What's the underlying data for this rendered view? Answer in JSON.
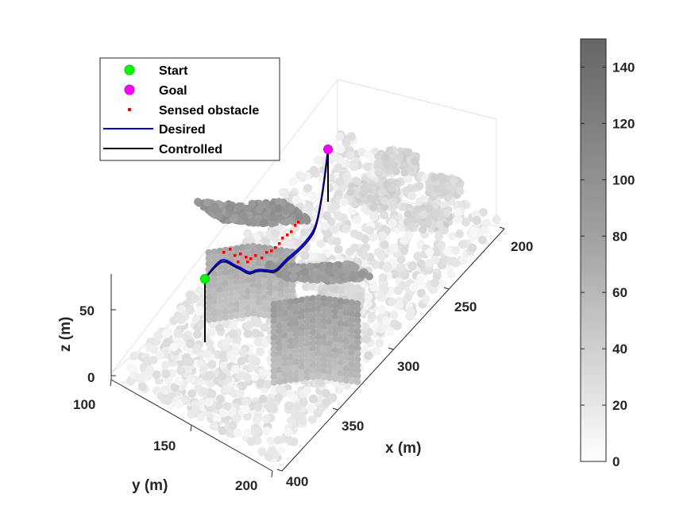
{
  "chart_data": {
    "type": "scatter",
    "title": "",
    "xlabel": "x (m)",
    "ylabel": "y (m)",
    "zlabel": "z (m)",
    "x_ticks": [
      "200",
      "250",
      "300",
      "350",
      "400"
    ],
    "y_ticks": [
      "100",
      "150",
      "200"
    ],
    "z_ticks": [
      "0",
      "50"
    ],
    "colorbar": {
      "ticks": [
        "0",
        "20",
        "40",
        "60",
        "80",
        "100",
        "120",
        "140"
      ],
      "range": [
        0,
        150
      ],
      "colormap": "gray"
    },
    "legend": {
      "placement": "top-left",
      "entries": [
        {
          "label": "Start",
          "marker": "circle",
          "color": "#00ff00"
        },
        {
          "label": "Goal",
          "marker": "circle",
          "color": "#ff00ff"
        },
        {
          "label": "Sensed obstacle",
          "marker": "dot",
          "color": "#ff0000"
        },
        {
          "label": "Desired",
          "marker": "line",
          "color": "#0000ff"
        },
        {
          "label": "Controlled",
          "marker": "line",
          "color": "#000000"
        }
      ]
    },
    "start": {
      "x": 250,
      "y": 145,
      "z": 75
    },
    "goal": {
      "x": 190,
      "y": 150,
      "z": 110
    }
  }
}
